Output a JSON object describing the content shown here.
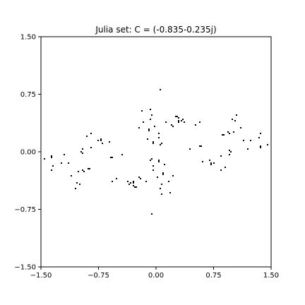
{
  "chart_data": {
    "type": "heatmap",
    "title": "Julia set: C = (-0.835-0.235j)",
    "c": {
      "re": -0.835,
      "im": -0.235
    },
    "xlabel": "",
    "ylabel": "",
    "xlim": [
      -1.5,
      1.5
    ],
    "ylim": [
      -1.5,
      1.5
    ],
    "x_ticks": [
      {
        "value": -1.5,
        "label": "−1.50"
      },
      {
        "value": -0.75,
        "label": "−0.75"
      },
      {
        "value": 0.0,
        "label": "0.00"
      },
      {
        "value": 0.75,
        "label": "0.75"
      },
      {
        "value": 1.5,
        "label": "1.50"
      }
    ],
    "y_ticks": [
      {
        "value": -1.5,
        "label": "−1.50"
      },
      {
        "value": -0.75,
        "label": "−0.75"
      },
      {
        "value": 0.0,
        "label": "0.00"
      },
      {
        "value": 0.75,
        "label": "0.75"
      },
      {
        "value": 1.5,
        "label": "1.50"
      }
    ],
    "grid": false,
    "colors": {
      "set": "#000000",
      "background": "#ffffff"
    }
  }
}
